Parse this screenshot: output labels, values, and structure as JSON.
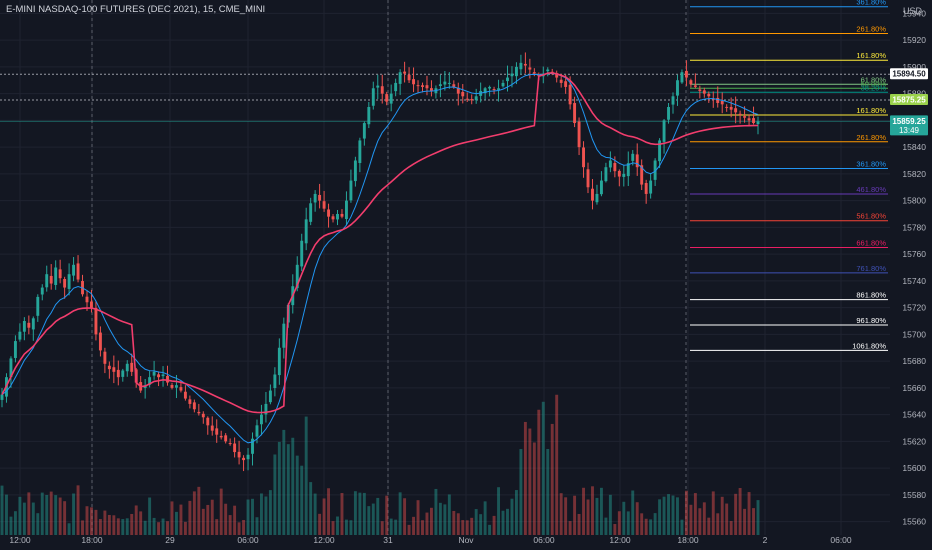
{
  "chart_data": {
    "type": "candlestick",
    "title": "E-MINI NASDAQ-100 FUTURES (DEC 2021), 15, CME_MINI",
    "currency": "USD",
    "ylim": [
      15550,
      15950
    ],
    "y_ticks": [
      15560,
      15580,
      15600,
      15620,
      15640,
      15660,
      15680,
      15700,
      15720,
      15740,
      15760,
      15780,
      15800,
      15820,
      15840,
      15860,
      15880,
      15900,
      15920,
      15940
    ],
    "x_tick_labels": [
      "12:00",
      "18:00",
      "29",
      "06:00",
      "12:00",
      "31",
      "Nov",
      "06:00",
      "12:00",
      "18:00",
      "2",
      "06:00"
    ],
    "price_labels": [
      {
        "text": "15894.50",
        "value": 15894.5,
        "color": "#ffffff"
      },
      {
        "text": "15875.25",
        "value": 15875.25,
        "color": "#9ad14b"
      },
      {
        "text": "15859.25",
        "value": 15859.25,
        "color": "#26a69a",
        "sub": "13:49"
      }
    ],
    "fib_levels": [
      {
        "label": "361.80%",
        "value": 15945,
        "color": "#2196f3"
      },
      {
        "label": "261.80%",
        "value": 15925,
        "color": "#ff9800"
      },
      {
        "label": "161.80%",
        "value": 15905,
        "color": "#ffeb3b"
      },
      {
        "label": "61.80%",
        "value": 15887,
        "color": "#81c784"
      },
      {
        "label": "50.00%",
        "value": 15884,
        "color": "#4caf50"
      },
      {
        "label": "38.20%",
        "value": 15881,
        "color": "#009688"
      },
      {
        "label": "161.80%",
        "value": 15864,
        "color": "#ffeb3b"
      },
      {
        "label": "261.80%",
        "value": 15844,
        "color": "#ff9800"
      },
      {
        "label": "361.80%",
        "value": 15824,
        "color": "#2196f3"
      },
      {
        "label": "461.80%",
        "value": 15805,
        "color": "#673ab7"
      },
      {
        "label": "561.80%",
        "value": 15785,
        "color": "#f44336"
      },
      {
        "label": "661.80%",
        "value": 15765,
        "color": "#e91e63"
      },
      {
        "label": "761.80%",
        "value": 15746,
        "color": "#3f51b5"
      },
      {
        "label": "861.80%",
        "value": 15726,
        "color": "#ffffff"
      },
      {
        "label": "961.80%",
        "value": 15707,
        "color": "#ffffff"
      },
      {
        "label": "1061.80%",
        "value": 15688,
        "color": "#ffffff"
      }
    ],
    "dotted_levels": [
      15894.5,
      15875.25
    ],
    "colors": {
      "up": "#26a69a",
      "down": "#ef5350",
      "ema_fast": "#2196f3",
      "vwap": "#f23d6d",
      "grid": "#1f2330",
      "bg": "#131722"
    },
    "series": [
      {
        "name": "",
        "type": "price",
        "close": [
          15655,
          15668,
          15682,
          15695,
          15702,
          15710,
          15705,
          15712,
          15728,
          15735,
          15745,
          15738,
          15750,
          15742,
          15735,
          15745,
          15752,
          15741,
          15730,
          15724,
          15720,
          15700,
          15688,
          15678,
          15674,
          15672,
          15668,
          15673,
          15678,
          15672,
          15664,
          15658,
          15662,
          15668,
          15672,
          15668,
          15670,
          15664,
          15660,
          15662,
          15658,
          15652,
          15648,
          15644,
          15641,
          15638,
          15632,
          15628,
          15625,
          15623,
          15620,
          15618,
          15612,
          15608,
          15606,
          15610,
          15622,
          15632,
          15640,
          15648,
          15658,
          15670,
          15690,
          15708,
          15722,
          15736,
          15752,
          15770,
          15786,
          15798,
          15805,
          15800,
          15794,
          15788,
          15786,
          15790,
          15788,
          15800,
          15815,
          15830,
          15845,
          15858,
          15870,
          15884,
          15886,
          15880,
          15874,
          15880,
          15888,
          15896,
          15895,
          15890,
          15887,
          15886,
          15885,
          15884,
          15882,
          15884,
          15887,
          15889,
          15888,
          15885,
          15880,
          15878,
          15876,
          15875,
          15878,
          15882,
          15884,
          15885,
          15883,
          15884,
          15888,
          15892,
          15895,
          15900,
          15903,
          15901,
          15898,
          15895,
          15893,
          15895,
          15898,
          15896,
          15892,
          15888,
          15885,
          15872,
          15858,
          15840,
          15825,
          15810,
          15800,
          15805,
          15815,
          15825,
          15830,
          15822,
          15818,
          15820,
          15828,
          15835,
          15825,
          15812,
          15805,
          15815,
          15830,
          15845,
          15860,
          15870,
          15878,
          15890,
          15896,
          15892,
          15887,
          15885,
          15882,
          15880,
          15878,
          15876,
          15873,
          15872,
          15870,
          15868,
          15866,
          15864,
          15862,
          15860,
          15858,
          15859.25
        ]
      },
      {
        "name": "",
        "type": "ema"
      },
      {
        "name": "",
        "type": "vwap"
      },
      {
        "name": "",
        "type": "volume"
      }
    ]
  }
}
